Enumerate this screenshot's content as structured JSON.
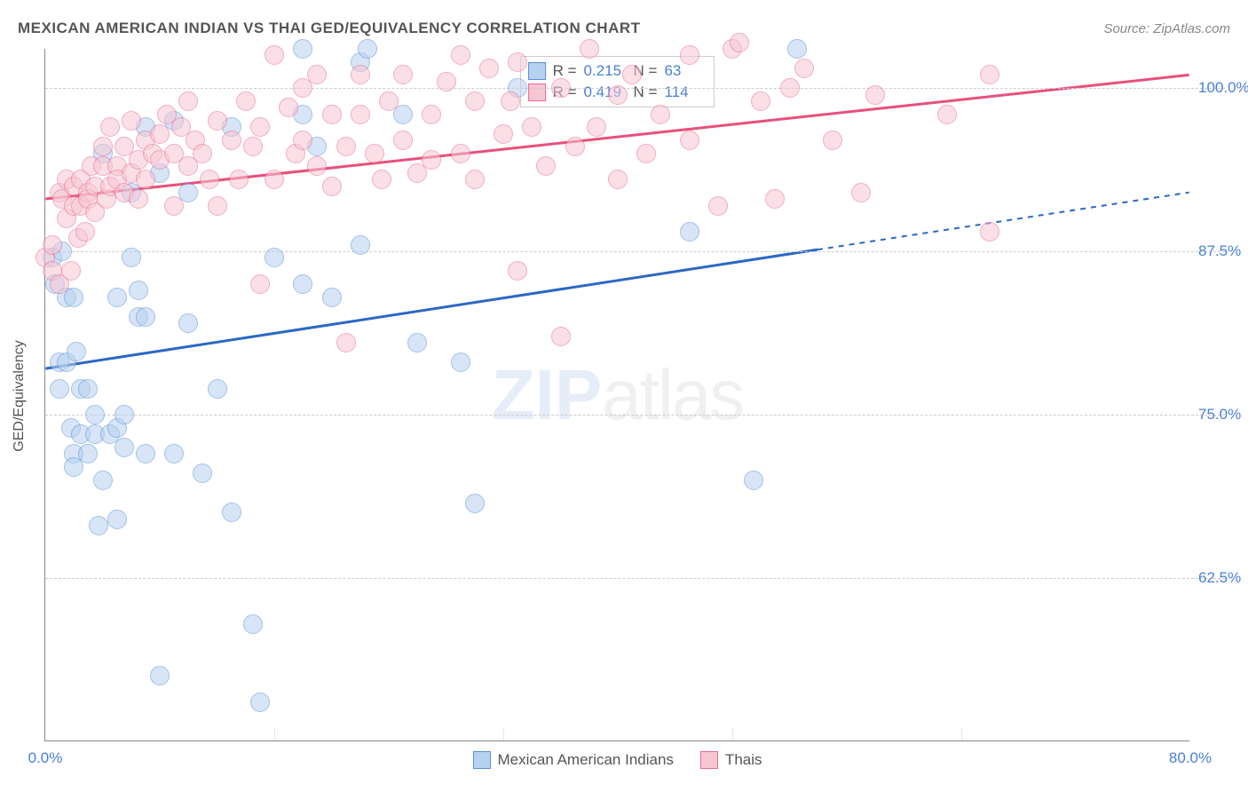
{
  "header": {
    "title": "MEXICAN AMERICAN INDIAN VS THAI GED/EQUIVALENCY CORRELATION CHART",
    "source": "Source: ZipAtlas.com"
  },
  "chart": {
    "type": "scatter",
    "ylabel": "GED/Equivalency",
    "watermark_z": "ZIP",
    "watermark_rest": "atlas",
    "background_color": "#ffffff",
    "grid_color": "#cccccc",
    "axis_color": "#888888",
    "tick_label_color": "#4a7fd6",
    "xlim": [
      0,
      80
    ],
    "ylim": [
      50,
      103
    ],
    "ytick_positions": [
      62.5,
      75.0,
      87.5,
      100.0
    ],
    "ytick_labels": [
      "62.5%",
      "75.0%",
      "87.5%",
      "100.0%"
    ],
    "xtick_positions": [
      0,
      80
    ],
    "xtick_labels": [
      "0.0%",
      "80.0%"
    ],
    "xgrid_positions": [
      16,
      32,
      48,
      64
    ],
    "point_radius": 11,
    "series": [
      {
        "name": "Mexican American Indians",
        "color_fill": "#b7d1f0",
        "color_stroke": "#5a8fd6",
        "R": "0.215",
        "N": "63",
        "trend": {
          "x1": 0,
          "y1": 78.5,
          "x2": 80,
          "y2": 92,
          "solid_until_x": 54,
          "color": "#2b68c4",
          "width": 3
        },
        "points": [
          [
            0.5,
            87
          ],
          [
            0.7,
            85
          ],
          [
            1,
            79
          ],
          [
            1,
            77
          ],
          [
            1.2,
            87.5
          ],
          [
            1.5,
            84
          ],
          [
            1.5,
            79
          ],
          [
            1.8,
            74
          ],
          [
            2,
            72
          ],
          [
            2,
            71
          ],
          [
            2,
            84
          ],
          [
            2.2,
            79.8
          ],
          [
            2.5,
            77
          ],
          [
            2.5,
            73.5
          ],
          [
            3,
            72
          ],
          [
            3,
            77
          ],
          [
            3.5,
            73.5
          ],
          [
            3.5,
            75
          ],
          [
            3.7,
            66.5
          ],
          [
            4,
            70
          ],
          [
            4,
            95
          ],
          [
            4.5,
            73.5
          ],
          [
            5,
            74
          ],
          [
            5,
            67
          ],
          [
            5,
            84
          ],
          [
            5.5,
            72.5
          ],
          [
            5.5,
            75
          ],
          [
            6,
            92
          ],
          [
            6,
            87
          ],
          [
            6.5,
            82.5
          ],
          [
            6.5,
            84.5
          ],
          [
            7,
            72
          ],
          [
            7,
            82.5
          ],
          [
            7,
            97
          ],
          [
            8,
            55
          ],
          [
            8,
            93.5
          ],
          [
            9,
            72
          ],
          [
            9,
            97.5
          ],
          [
            10,
            82
          ],
          [
            10,
            92
          ],
          [
            11,
            70.5
          ],
          [
            12,
            77
          ],
          [
            13,
            97
          ],
          [
            13,
            67.5
          ],
          [
            14.5,
            59
          ],
          [
            15,
            53
          ],
          [
            16,
            87
          ],
          [
            18,
            98
          ],
          [
            18,
            85
          ],
          [
            18,
            103
          ],
          [
            19,
            95.5
          ],
          [
            20,
            84
          ],
          [
            22,
            102
          ],
          [
            22,
            88
          ],
          [
            22.5,
            103
          ],
          [
            25,
            98
          ],
          [
            26,
            80.5
          ],
          [
            29,
            79
          ],
          [
            30,
            68.2
          ],
          [
            33,
            100
          ],
          [
            45,
            89
          ],
          [
            49.5,
            70
          ],
          [
            52.5,
            103
          ]
        ]
      },
      {
        "name": "Thais",
        "color_fill": "#f7c6d4",
        "color_stroke": "#e86a91",
        "R": "0.419",
        "N": "114",
        "trend": {
          "x1": 0,
          "y1": 91.5,
          "x2": 80,
          "y2": 101,
          "solid_until_x": 80,
          "color": "#e84f7d",
          "width": 3
        },
        "points": [
          [
            0,
            87
          ],
          [
            0.5,
            88
          ],
          [
            0.5,
            86
          ],
          [
            1,
            85
          ],
          [
            1,
            92
          ],
          [
            1.2,
            91.5
          ],
          [
            1.5,
            90
          ],
          [
            1.5,
            93
          ],
          [
            1.8,
            86
          ],
          [
            2,
            91
          ],
          [
            2,
            92.5
          ],
          [
            2.3,
            88.5
          ],
          [
            2.5,
            93
          ],
          [
            2.5,
            91
          ],
          [
            2.8,
            89
          ],
          [
            3,
            92
          ],
          [
            3,
            91.5
          ],
          [
            3.2,
            94
          ],
          [
            3.5,
            90.5
          ],
          [
            3.5,
            92.5
          ],
          [
            4,
            94
          ],
          [
            4,
            95.5
          ],
          [
            4.3,
            91.5
          ],
          [
            4.5,
            92.5
          ],
          [
            4.5,
            97
          ],
          [
            5,
            94
          ],
          [
            5,
            93
          ],
          [
            5.5,
            95.5
          ],
          [
            5.5,
            92
          ],
          [
            6,
            93.5
          ],
          [
            6,
            97.5
          ],
          [
            6.5,
            94.5
          ],
          [
            6.5,
            91.5
          ],
          [
            7,
            96
          ],
          [
            7,
            93
          ],
          [
            7.5,
            95
          ],
          [
            8,
            96.5
          ],
          [
            8,
            94.5
          ],
          [
            8.5,
            98
          ],
          [
            9,
            95
          ],
          [
            9,
            91
          ],
          [
            9.5,
            97
          ],
          [
            10,
            94
          ],
          [
            10,
            99
          ],
          [
            10.5,
            96
          ],
          [
            11,
            95
          ],
          [
            11.5,
            93
          ],
          [
            12,
            97.5
          ],
          [
            12,
            91
          ],
          [
            13,
            96
          ],
          [
            13.5,
            93
          ],
          [
            14,
            99
          ],
          [
            14.5,
            95.5
          ],
          [
            15,
            85
          ],
          [
            15,
            97
          ],
          [
            16,
            102.5
          ],
          [
            16,
            93
          ],
          [
            17,
            98.5
          ],
          [
            17.5,
            95
          ],
          [
            18,
            100
          ],
          [
            18,
            96
          ],
          [
            19,
            94
          ],
          [
            19,
            101
          ],
          [
            20,
            98
          ],
          [
            20,
            92.5
          ],
          [
            21,
            80.5
          ],
          [
            21,
            95.5
          ],
          [
            22,
            98
          ],
          [
            22,
            101
          ],
          [
            23,
            95
          ],
          [
            23.5,
            93
          ],
          [
            24,
            99
          ],
          [
            25,
            96
          ],
          [
            25,
            101
          ],
          [
            26,
            93.5
          ],
          [
            27,
            94.5
          ],
          [
            27,
            98
          ],
          [
            28,
            100.5
          ],
          [
            29,
            102.5
          ],
          [
            29,
            95
          ],
          [
            30,
            93
          ],
          [
            30,
            99
          ],
          [
            31,
            101.5
          ],
          [
            32,
            96.5
          ],
          [
            32.5,
            99
          ],
          [
            33,
            86
          ],
          [
            33,
            102
          ],
          [
            34,
            97
          ],
          [
            35,
            94
          ],
          [
            36,
            81
          ],
          [
            36,
            100
          ],
          [
            37,
            95.5
          ],
          [
            38,
            103
          ],
          [
            38.5,
            97
          ],
          [
            40,
            93
          ],
          [
            40,
            99.5
          ],
          [
            41,
            101
          ],
          [
            42,
            95
          ],
          [
            43,
            98
          ],
          [
            45,
            102.5
          ],
          [
            45,
            96
          ],
          [
            47,
            91
          ],
          [
            48,
            103
          ],
          [
            50,
            99
          ],
          [
            51,
            91.5
          ],
          [
            52,
            100
          ],
          [
            53,
            101.5
          ],
          [
            55,
            96
          ],
          [
            57,
            92
          ],
          [
            58,
            99.5
          ],
          [
            63,
            98
          ],
          [
            66,
            101
          ],
          [
            66,
            89
          ],
          [
            48.5,
            103.5
          ]
        ]
      }
    ],
    "stat_legend_labels": {
      "R": "R =",
      "N": "N ="
    },
    "bottom_legend": [
      {
        "label": "Mexican American Indians",
        "fill": "#b7d1f0",
        "stroke": "#5a8fd6"
      },
      {
        "label": "Thais",
        "fill": "#f7c6d4",
        "stroke": "#e86a91"
      }
    ]
  }
}
